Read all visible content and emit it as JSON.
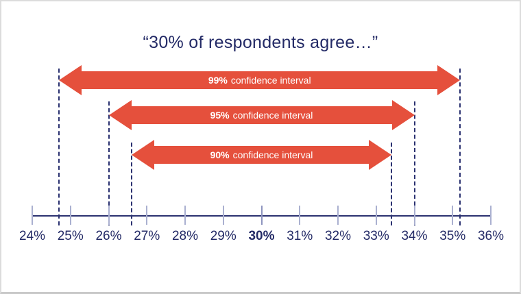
{
  "colors": {
    "navy_text": "#232a66",
    "line_navy": "#2a3170",
    "arrow_red": "#e5503c",
    "tick_gray": "#aab0d0",
    "tick_emphasis": "#8d94bf",
    "background": "#ffffff",
    "frame_border": "#dcdcdc"
  },
  "chart_data": {
    "type": "interval",
    "title": "“30% of respondents agree…”",
    "point_estimate": 30,
    "point_estimate_label": "30%",
    "xlabel": "",
    "ylabel": "",
    "axis": {
      "min": 24,
      "max": 36,
      "step": 1,
      "unit": "%",
      "tick_values": [
        24,
        25,
        26,
        27,
        28,
        29,
        30,
        31,
        32,
        33,
        34,
        35,
        36
      ],
      "tick_labels": [
        "24%",
        "25%",
        "26%",
        "27%",
        "28%",
        "29%",
        "30%",
        "31%",
        "32%",
        "33%",
        "34%",
        "35%",
        "36%"
      ],
      "bold_tick_value": 30,
      "grid": false
    },
    "intervals": [
      {
        "level": "99%",
        "label": "confidence interval",
        "low": 24.7,
        "high": 35.2
      },
      {
        "level": "95%",
        "label": "confidence interval",
        "low": 26.0,
        "high": 34.0
      },
      {
        "level": "90%",
        "label": "confidence interval",
        "low": 26.6,
        "high": 33.4
      }
    ]
  }
}
